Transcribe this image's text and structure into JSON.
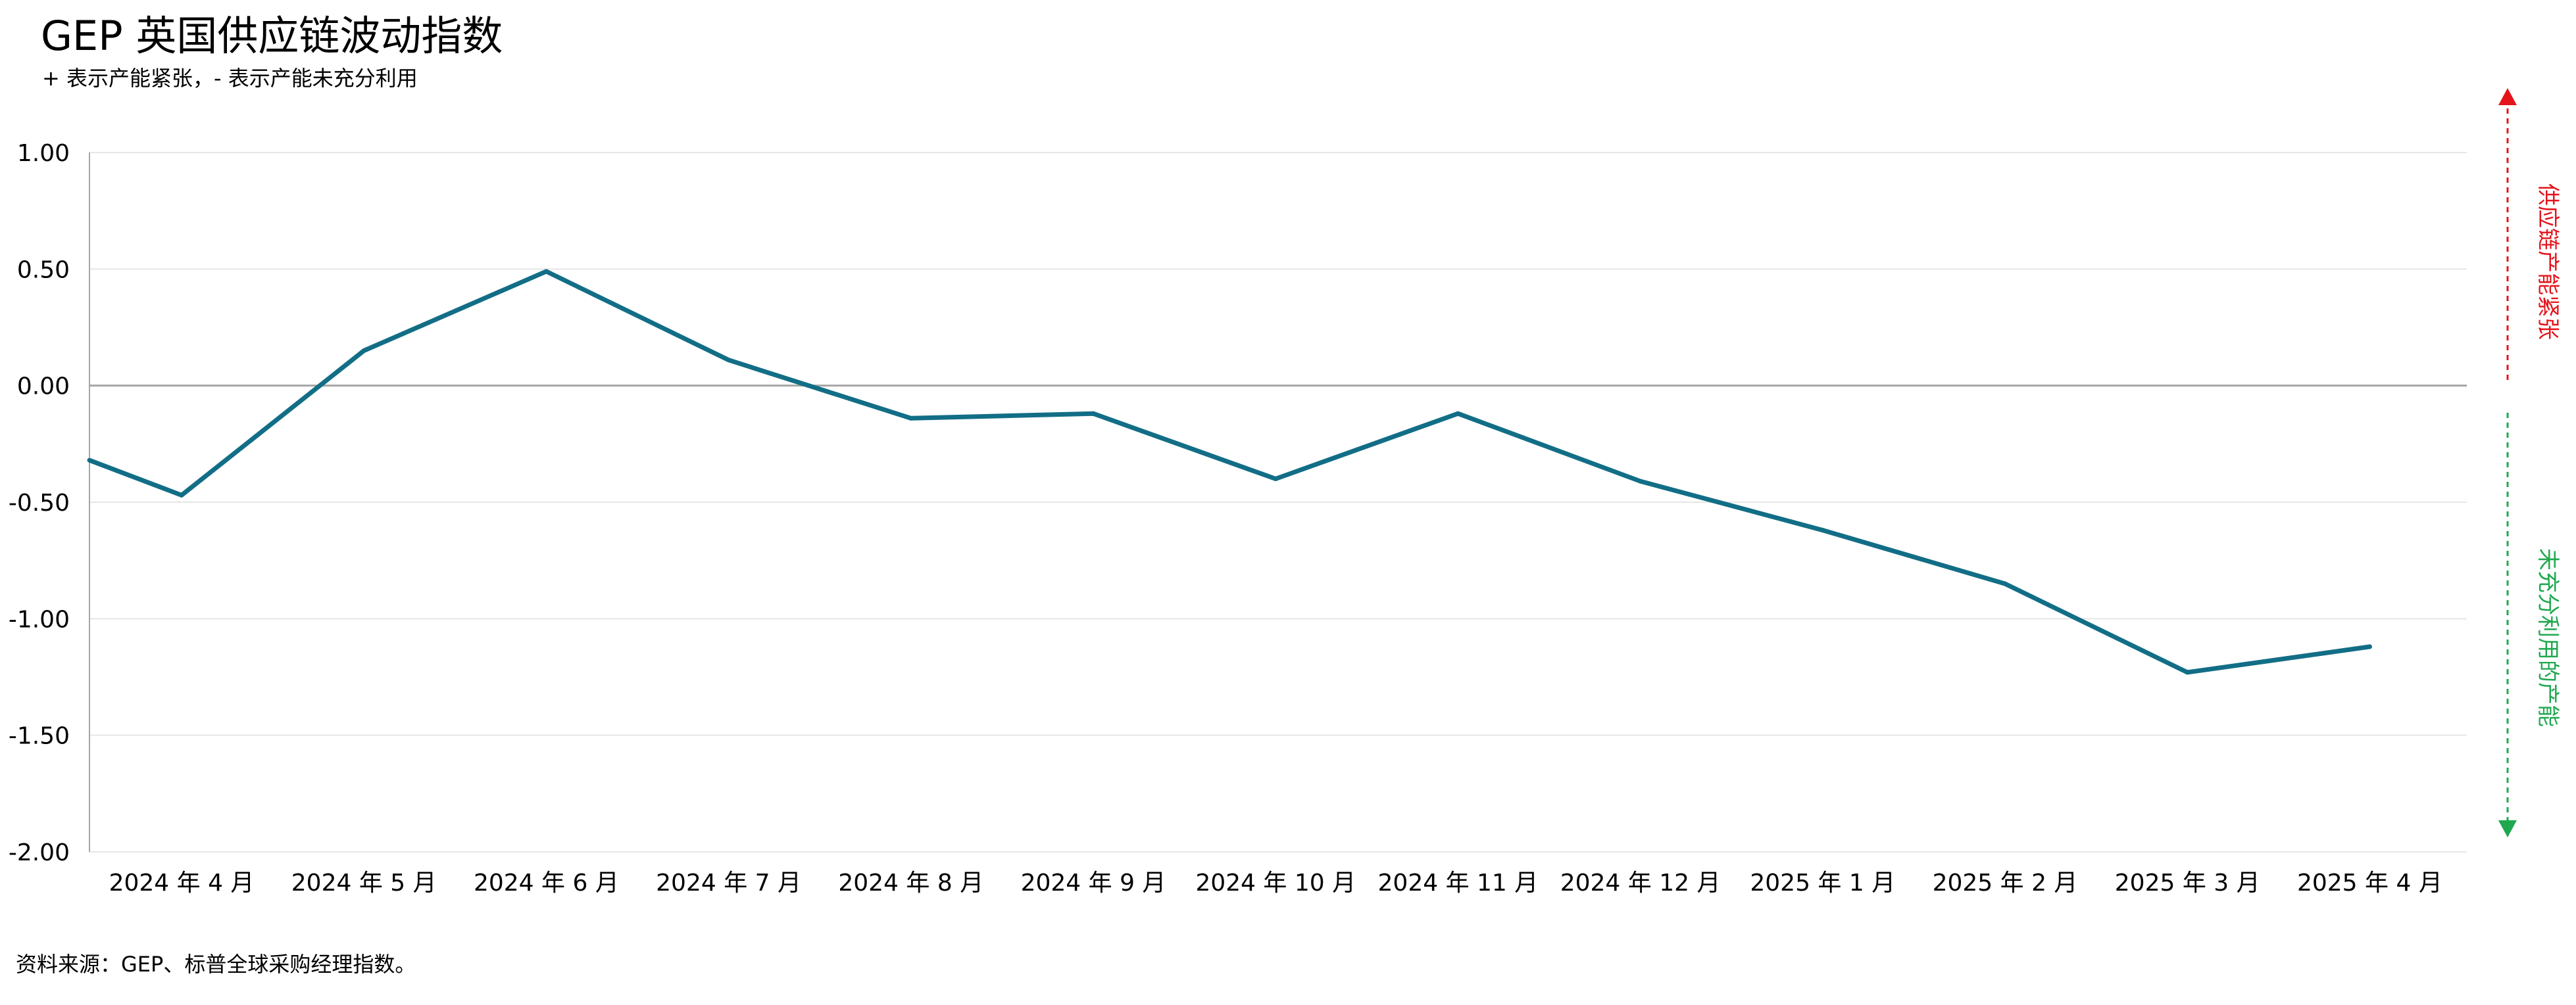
{
  "title": "GEP 英国供应链波动指数",
  "subtitle": "+ 表示产能紧张，- 表示产能未充分利用",
  "source": "资料来源：GEP、标普全球采购经理指数。",
  "colors": {
    "line": "#126E86",
    "grid": "#E6E6E6",
    "zero_line": "#A6A6A6",
    "axis": "#A6A6A6",
    "tight": "#E4141B",
    "spare": "#1FA84F"
  },
  "chart_data": {
    "type": "line",
    "x": [
      "2024 年 4 月",
      "2024 年 5 月",
      "2024 年 6 月",
      "2024 年 7 月",
      "2024 年 8 月",
      "2024 年 9 月",
      "2024 年 10 月",
      "2024 年 11 月",
      "2024 年 12 月",
      "2025 年 1 月",
      "2025 年 2 月",
      "2025 年 3 月",
      "2025 年 4 月"
    ],
    "series": [
      {
        "start_value": -0.32,
        "values": [
          -0.47,
          0.15,
          0.49,
          0.11,
          -0.14,
          -0.12,
          -0.4,
          -0.12,
          -0.41,
          -0.62,
          -0.85,
          -1.23,
          -1.12
        ]
      }
    ],
    "yticks": [
      "1.00",
      "0.50",
      "0.00",
      "-0.50",
      "-1.00",
      "-1.50",
      "-2.00"
    ],
    "ylim": [
      -2.0,
      1.0
    ],
    "grid": true,
    "annotations": {
      "upper": "供应链产能紧张",
      "lower": "未充分利用的产能"
    }
  }
}
